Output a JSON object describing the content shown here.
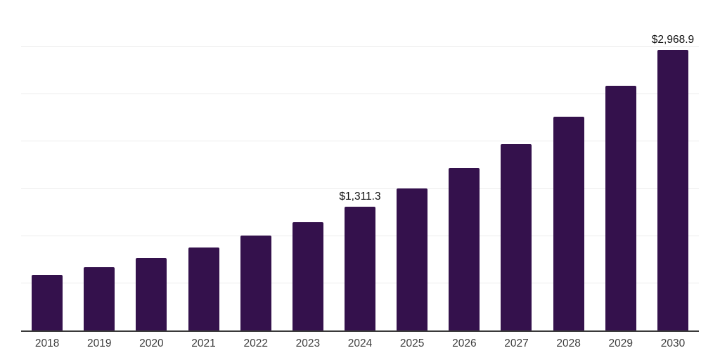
{
  "chart_data": {
    "type": "bar",
    "categories": [
      "2018",
      "2019",
      "2020",
      "2021",
      "2022",
      "2023",
      "2024",
      "2025",
      "2026",
      "2027",
      "2028",
      "2029",
      "2030"
    ],
    "values": [
      588,
      670,
      768,
      879,
      1002,
      1146,
      1311.3,
      1502.7,
      1722.1,
      1973.5,
      2261.7,
      2591.9,
      2968.9
    ],
    "value_labels": [
      "",
      "",
      "",
      "",
      "",
      "",
      "$1,311.3",
      "",
      "",
      "",
      "",
      "",
      "$2,968.9"
    ],
    "title": "",
    "xlabel": "",
    "ylabel": "",
    "ylim": [
      0,
      3500
    ],
    "grid": true,
    "gridline_values": [
      500,
      1000,
      1500,
      2000,
      2500,
      3000,
      3500
    ],
    "legend": false,
    "legend_position": "none",
    "colors": {
      "bar": "#34114c",
      "axis": "#3a3a3a",
      "grid": "#ececec",
      "tick_label": "#3f3f3f",
      "value_label": "#0f0f0f",
      "background": "#ffffff"
    }
  }
}
